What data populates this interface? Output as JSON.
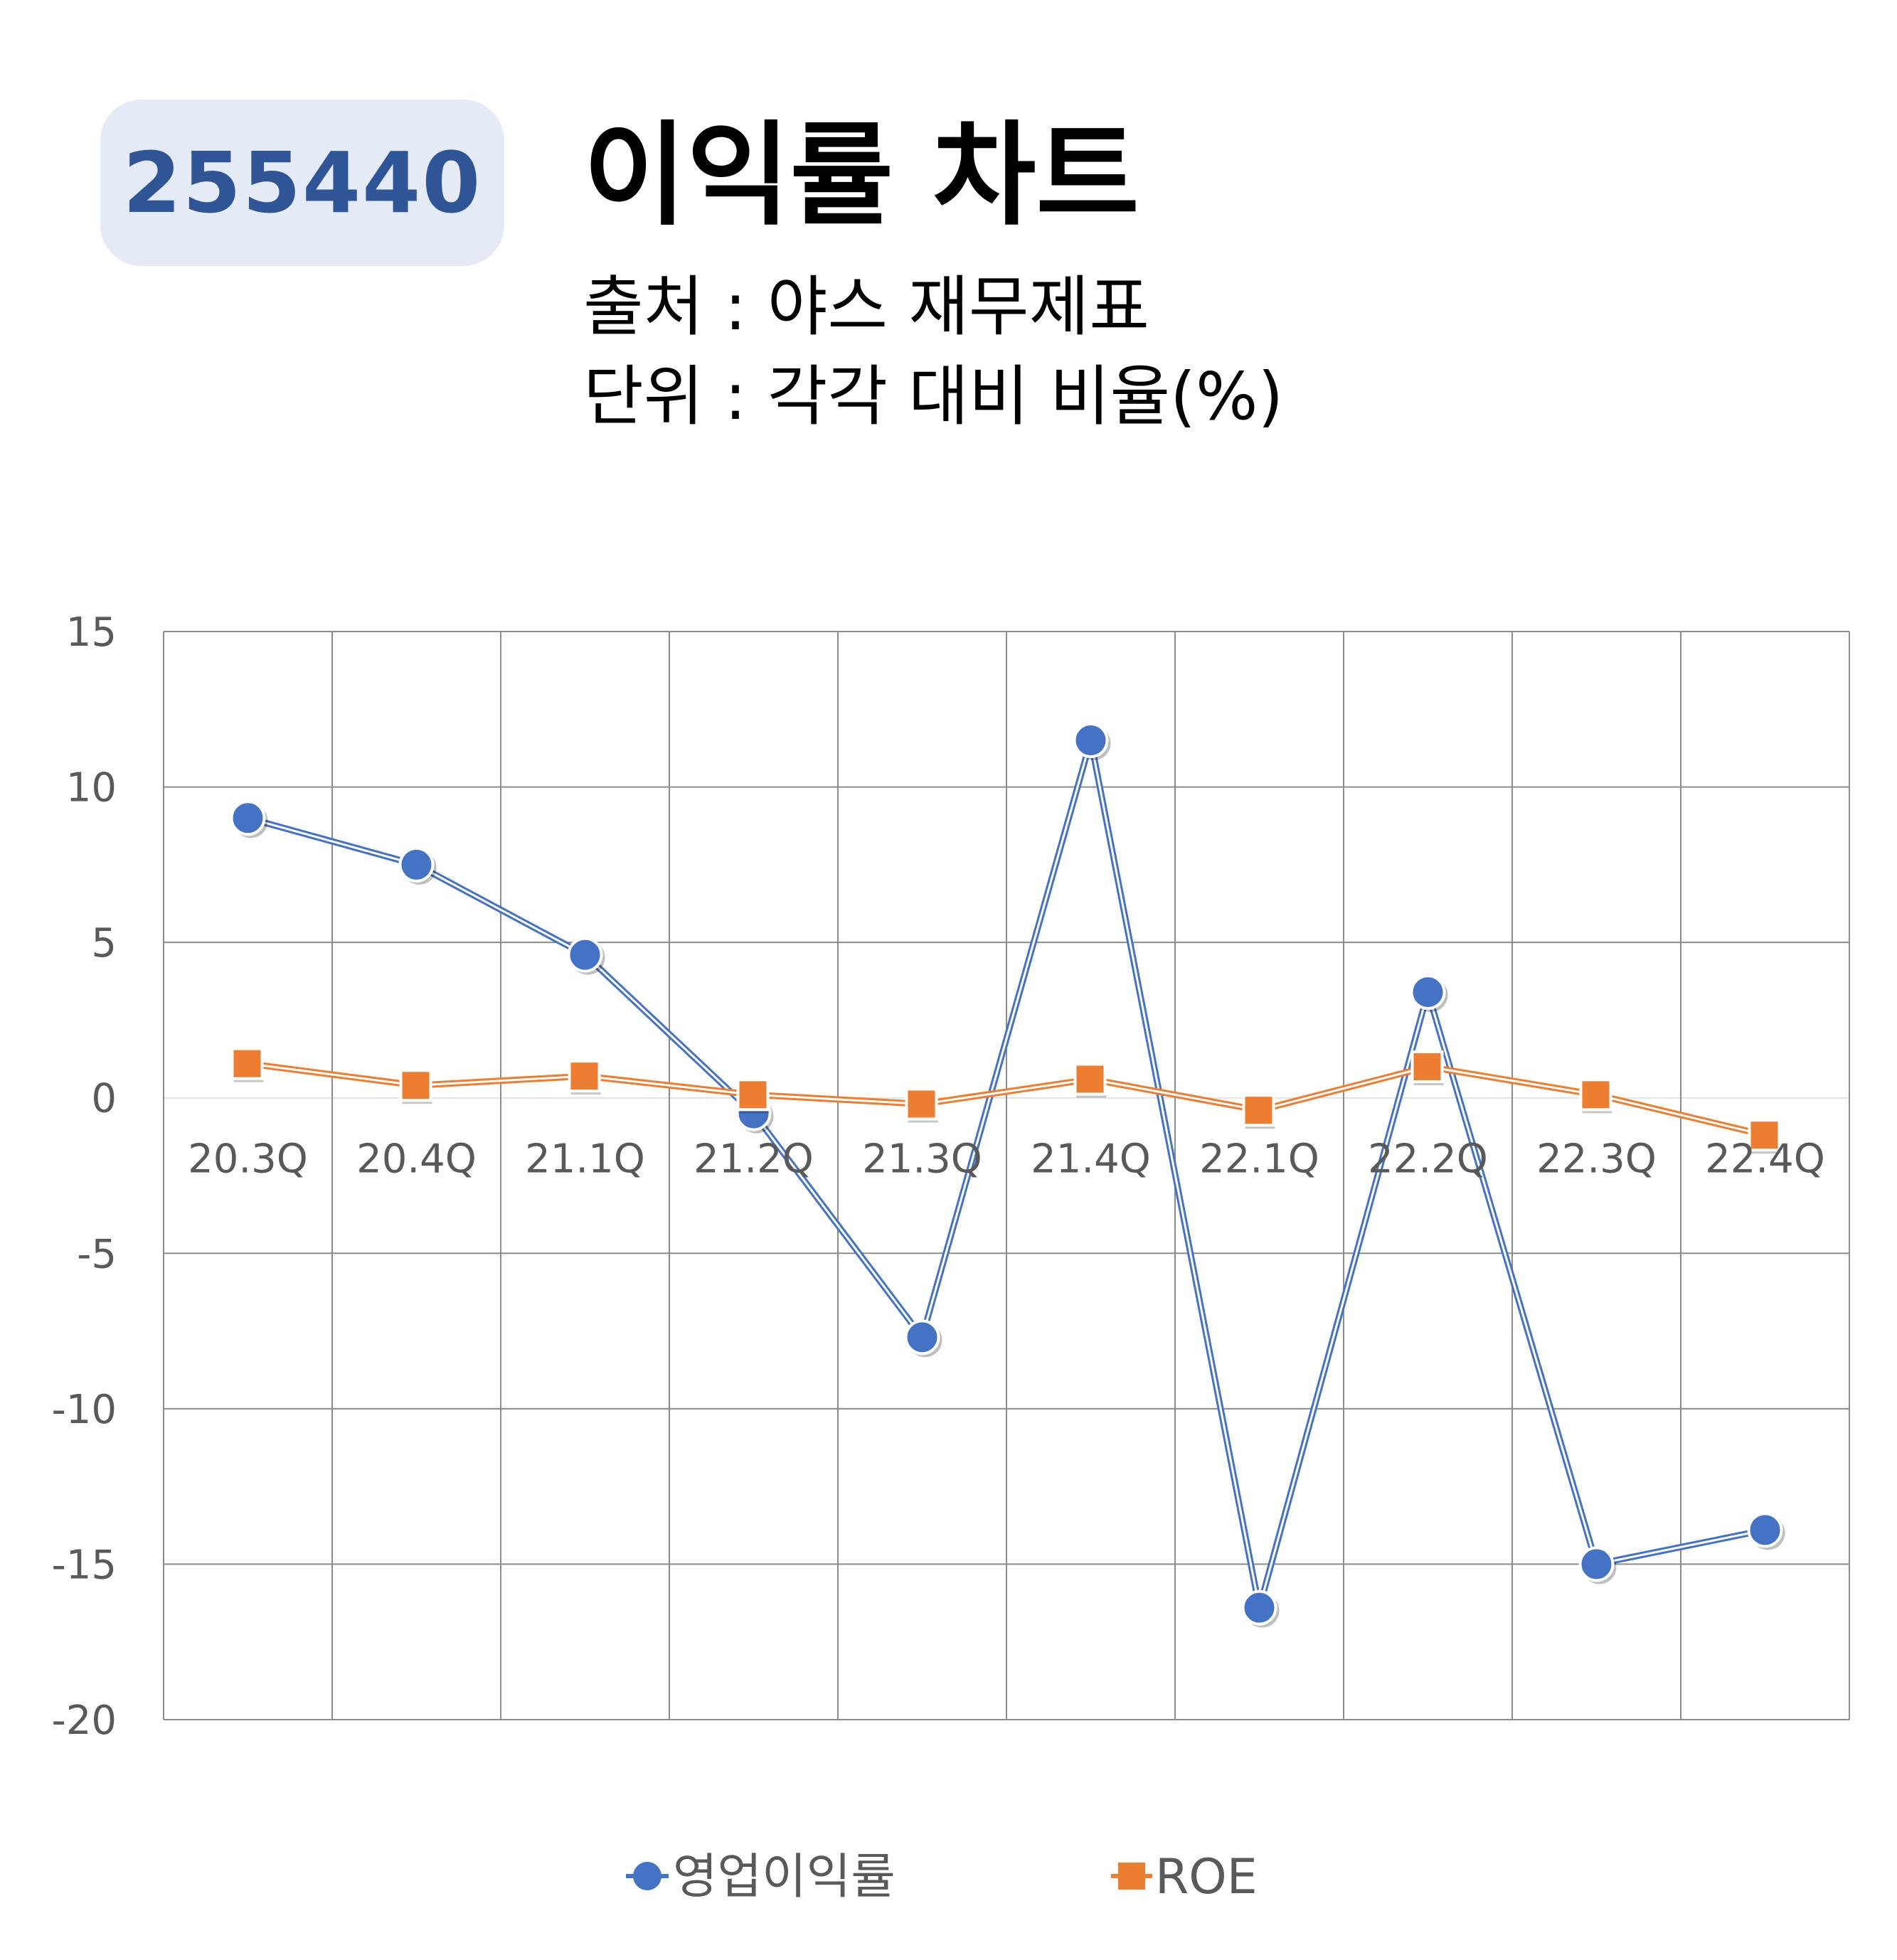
{
  "header": {
    "code": "255440",
    "title": "이익률 차트",
    "source": "출처 : 야스 재무제표",
    "unit": "단위 : 각각 대비 비율(%)"
  },
  "colors": {
    "operating_margin": "#4472c4",
    "roe": "#ed7d31",
    "grid": "#8c8c8c",
    "tick": "#595959"
  },
  "chart_data": {
    "type": "line",
    "categories": [
      "20.3Q",
      "20.4Q",
      "21.1Q",
      "21.2Q",
      "21.3Q",
      "21.4Q",
      "22.1Q",
      "22.2Q",
      "22.3Q",
      "22.4Q"
    ],
    "series": [
      {
        "name": "영업이익률",
        "marker": "circle",
        "color": "#4472c4",
        "values": [
          9.0,
          7.5,
          4.6,
          -0.5,
          -7.7,
          11.5,
          -16.4,
          3.4,
          -15.0,
          -13.9
        ]
      },
      {
        "name": "ROE",
        "marker": "square",
        "color": "#ed7d31",
        "values": [
          1.1,
          0.4,
          0.7,
          0.1,
          -0.2,
          0.6,
          -0.4,
          1.0,
          0.1,
          -1.2
        ]
      }
    ],
    "yticks": [
      "15",
      "10",
      "5",
      "0",
      "-5",
      "-10",
      "-15",
      "-20"
    ],
    "ylim": [
      -20,
      15
    ],
    "grid": true,
    "legend": "bottom"
  }
}
